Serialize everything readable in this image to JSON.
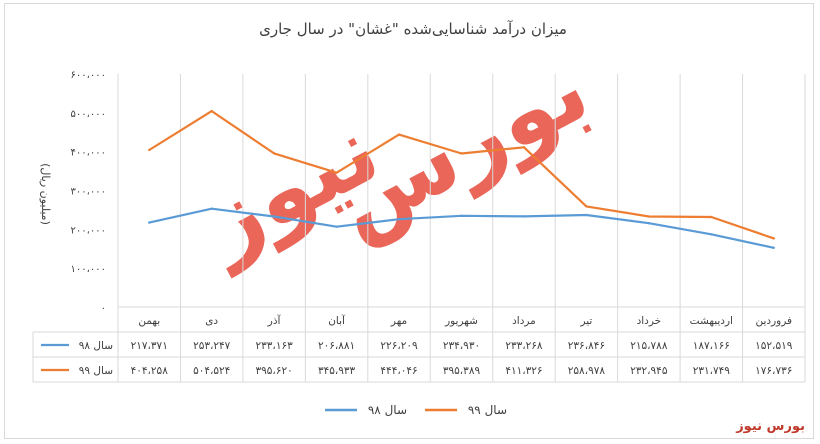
{
  "colors": {
    "series98": "#5b9bd5",
    "series99": "#ed7d31",
    "grid": "#d9d9d9",
    "text": "#404040",
    "watermark": "#e74c3c",
    "brand": "#c0392b"
  },
  "watermark": {
    "line1": "بورس",
    "line2": "نیوز"
  },
  "brand": "بورس نیوز",
  "chart_data": {
    "type": "line",
    "title": "میزان درآمد شناسایی‌شده \"غشان\" در سال جاری",
    "ylabel": "(میلیون ریال)",
    "xlabel": "",
    "ylim": [
      0,
      600000
    ],
    "y_ticks": [
      0,
      100000,
      200000,
      300000,
      400000,
      500000,
      600000
    ],
    "y_tick_labels": [
      "۰",
      "۱۰۰،۰۰۰",
      "۲۰۰،۰۰۰",
      "۳۰۰،۰۰۰",
      "۴۰۰،۰۰۰",
      "۵۰۰،۰۰۰",
      "۶۰۰،۰۰۰"
    ],
    "x_direction": "right-to-left",
    "grid": "vertical",
    "legend_position": "bottom",
    "categories": [
      "فروردین",
      "اردیبهشت",
      "خرداد",
      "تیر",
      "مرداد",
      "شهریور",
      "مهر",
      "آبان",
      "آذر",
      "دی",
      "بهمن"
    ],
    "series": [
      {
        "name": "سال ۹۸",
        "color": "#5b9bd5",
        "values": [
          152519,
          187166,
          215788,
          236846,
          233268,
          234930,
          226209,
          206881,
          233163,
          253247,
          217371
        ],
        "labels": [
          "۱۵۲،۵۱۹",
          "۱۸۷،۱۶۶",
          "۲۱۵،۷۸۸",
          "۲۳۶،۸۴۶",
          "۲۳۳،۲۶۸",
          "۲۳۴،۹۳۰",
          "۲۲۶،۲۰۹",
          "۲۰۶،۸۸۱",
          "۲۳۳،۱۶۳",
          "۲۵۳،۲۴۷",
          "۲۱۷،۳۷۱"
        ]
      },
      {
        "name": "سال ۹۹",
        "color": "#ed7d31",
        "values": [
          176736,
          231749,
          232945,
          258978,
          411326,
          395389,
          444046,
          345933,
          395620,
          504524,
          404258
        ],
        "labels": [
          "۱۷۶،۷۳۶",
          "۲۳۱،۷۴۹",
          "۲۳۲،۹۴۵",
          "۲۵۸،۹۷۸",
          "۴۱۱،۳۲۶",
          "۳۹۵،۳۸۹",
          "۴۴۴،۰۴۶",
          "۳۴۵،۹۳۳",
          "۳۹۵،۶۲۰",
          "۵۰۴،۵۲۴",
          "۴۰۴،۲۵۸"
        ]
      }
    ]
  }
}
